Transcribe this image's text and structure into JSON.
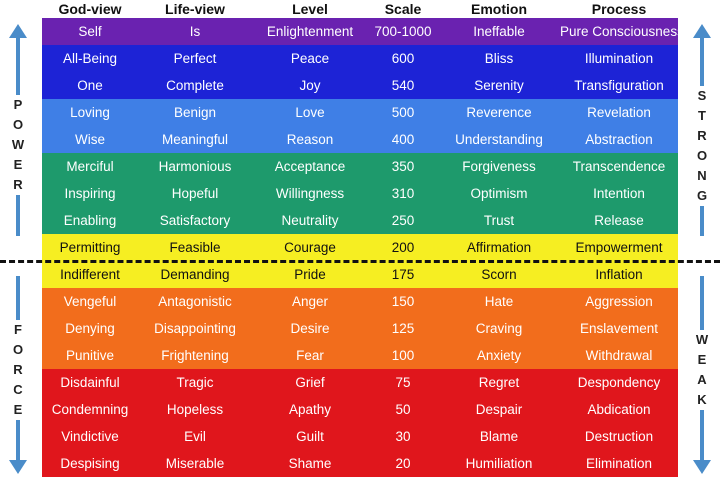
{
  "headers": [
    "God-view",
    "Life-view",
    "Level",
    "Scale",
    "Emotion",
    "Process"
  ],
  "side_labels": {
    "left_top": [
      "P",
      "O",
      "W",
      "E",
      "R"
    ],
    "left_bottom": [
      "F",
      "O",
      "R",
      "C",
      "E"
    ],
    "right_top": [
      "S",
      "T",
      "R",
      "O",
      "N",
      "G"
    ],
    "right_bottom": [
      "W",
      "E",
      "A",
      "K"
    ]
  },
  "rows": [
    {
      "cells": [
        "Self",
        "Is",
        "Enlightenment",
        "700-1000",
        "Ineffable",
        "Pure Consciousness"
      ],
      "color": "#6a22b0",
      "dark": false
    },
    {
      "cells": [
        "All-Being",
        "Perfect",
        "Peace",
        "600",
        "Bliss",
        "Illumination"
      ],
      "color": "#1d23d6",
      "dark": false
    },
    {
      "cells": [
        "One",
        "Complete",
        "Joy",
        "540",
        "Serenity",
        "Transfiguration"
      ],
      "color": "#1d23d6",
      "dark": false
    },
    {
      "cells": [
        "Loving",
        "Benign",
        "Love",
        "500",
        "Reverence",
        "Revelation"
      ],
      "color": "#3f7fe6",
      "dark": false
    },
    {
      "cells": [
        "Wise",
        "Meaningful",
        "Reason",
        "400",
        "Understanding",
        "Abstraction"
      ],
      "color": "#3f7fe6",
      "dark": false
    },
    {
      "cells": [
        "Merciful",
        "Harmonious",
        "Acceptance",
        "350",
        "Forgiveness",
        "Transcendence"
      ],
      "color": "#1e9a6c",
      "dark": false
    },
    {
      "cells": [
        "Inspiring",
        "Hopeful",
        "Willingness",
        "310",
        "Optimism",
        "Intention"
      ],
      "color": "#1e9a6c",
      "dark": false
    },
    {
      "cells": [
        "Enabling",
        "Satisfactory",
        "Neutrality",
        "250",
        "Trust",
        "Release"
      ],
      "color": "#1e9a6c",
      "dark": false
    },
    {
      "cells": [
        "Permitting",
        "Feasible",
        "Courage",
        "200",
        "Affirmation",
        "Empowerment"
      ],
      "color": "#f6ee22",
      "dark": true
    },
    {
      "cells": [
        "Indifferent",
        "Demanding",
        "Pride",
        "175",
        "Scorn",
        "Inflation"
      ],
      "color": "#f6ee22",
      "dark": true
    },
    {
      "cells": [
        "Vengeful",
        "Antagonistic",
        "Anger",
        "150",
        "Hate",
        "Aggression"
      ],
      "color": "#f26d1c",
      "dark": false
    },
    {
      "cells": [
        "Denying",
        "Disappointing",
        "Desire",
        "125",
        "Craving",
        "Enslavement"
      ],
      "color": "#f26d1c",
      "dark": false
    },
    {
      "cells": [
        "Punitive",
        "Frightening",
        "Fear",
        "100",
        "Anxiety",
        "Withdrawal"
      ],
      "color": "#f26d1c",
      "dark": false
    },
    {
      "cells": [
        "Disdainful",
        "Tragic",
        "Grief",
        "75",
        "Regret",
        "Despondency"
      ],
      "color": "#e0161c",
      "dark": false
    },
    {
      "cells": [
        "Condemning",
        "Hopeless",
        "Apathy",
        "50",
        "Despair",
        "Abdication"
      ],
      "color": "#e0161c",
      "dark": false
    },
    {
      "cells": [
        "Vindictive",
        "Evil",
        "Guilt",
        "30",
        "Blame",
        "Destruction"
      ],
      "color": "#e0161c",
      "dark": false
    },
    {
      "cells": [
        "Despising",
        "Miserable",
        "Shame",
        "20",
        "Humiliation",
        "Elimination"
      ],
      "color": "#e0161c",
      "dark": false
    }
  ]
}
